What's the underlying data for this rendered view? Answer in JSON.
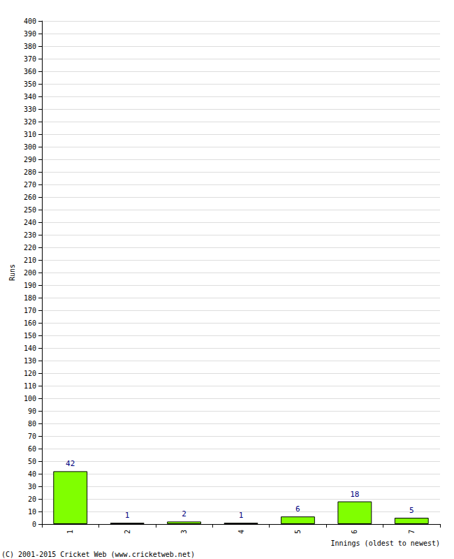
{
  "chart_data": {
    "type": "bar",
    "categories": [
      "1",
      "2",
      "3",
      "4",
      "5",
      "6",
      "7"
    ],
    "values": [
      42,
      1,
      2,
      1,
      6,
      18,
      5
    ],
    "color": "#80ff00",
    "x_label": "Innings (oldest to newest)",
    "y_label": "Runs",
    "ylim": [
      0,
      400
    ],
    "yticks": [
      0,
      10,
      20,
      30,
      40,
      50,
      60,
      70,
      80,
      90,
      100,
      110,
      120,
      130,
      140,
      150,
      160,
      170,
      180,
      190,
      200,
      210,
      220,
      230,
      240,
      250,
      260,
      270,
      280,
      290,
      300,
      310,
      320,
      330,
      340,
      350,
      360,
      370,
      380,
      390,
      400
    ],
    "grid": true,
    "data_labels": true,
    "annotations": [
      "(C) 2001-2015 Cricket Web (www.cricketweb.net)"
    ]
  }
}
